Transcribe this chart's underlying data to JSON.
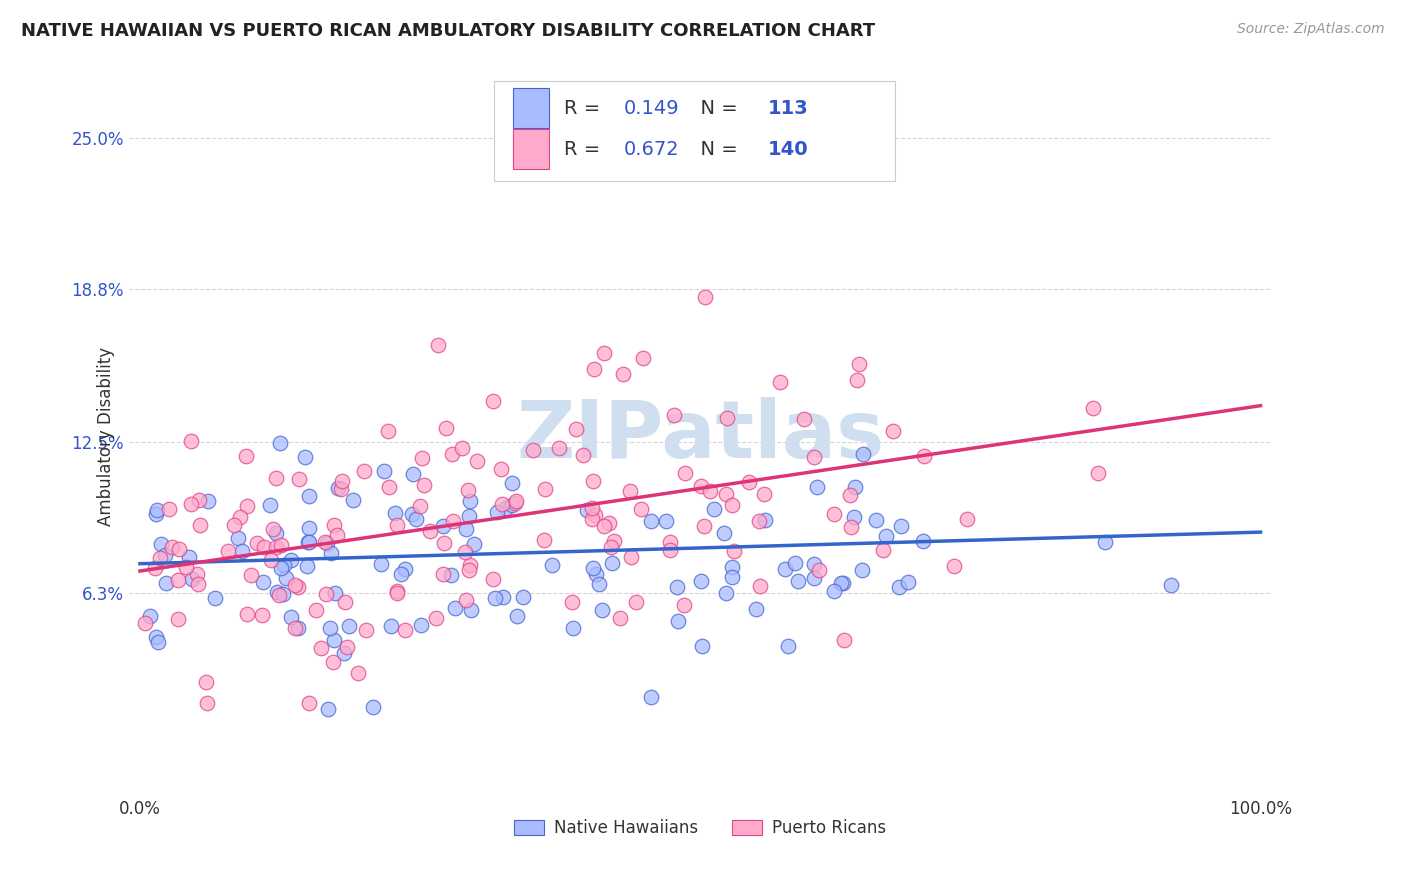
{
  "title": "NATIVE HAWAIIAN VS PUERTO RICAN AMBULATORY DISABILITY CORRELATION CHART",
  "source": "Source: ZipAtlas.com",
  "ylabel": "Ambulatory Disability",
  "ytick_vals": [
    0.063,
    0.125,
    0.188,
    0.25
  ],
  "ytick_labels": [
    "6.3%",
    "12.5%",
    "18.8%",
    "25.0%"
  ],
  "xlim": [
    -0.01,
    1.01
  ],
  "ylim": [
    -0.02,
    0.275
  ],
  "r_blue": 0.149,
  "n_blue": 113,
  "r_pink": 0.672,
  "n_pink": 140,
  "blue_face": "#aabbff",
  "blue_edge": "#4466cc",
  "pink_face": "#ffaacc",
  "pink_edge": "#dd4488",
  "line_blue_color": "#3366cc",
  "line_pink_color": "#dd3377",
  "title_fontsize": 13,
  "source_fontsize": 10,
  "legend_fontsize": 14,
  "watermark": "ZIPatlas",
  "watermark_color": "#d0dff0",
  "background_color": "#ffffff",
  "seed_blue": 7,
  "seed_pink": 13,
  "blue_line_start_y": 0.075,
  "blue_line_end_y": 0.088,
  "pink_line_start_y": 0.072,
  "pink_line_end_y": 0.14
}
